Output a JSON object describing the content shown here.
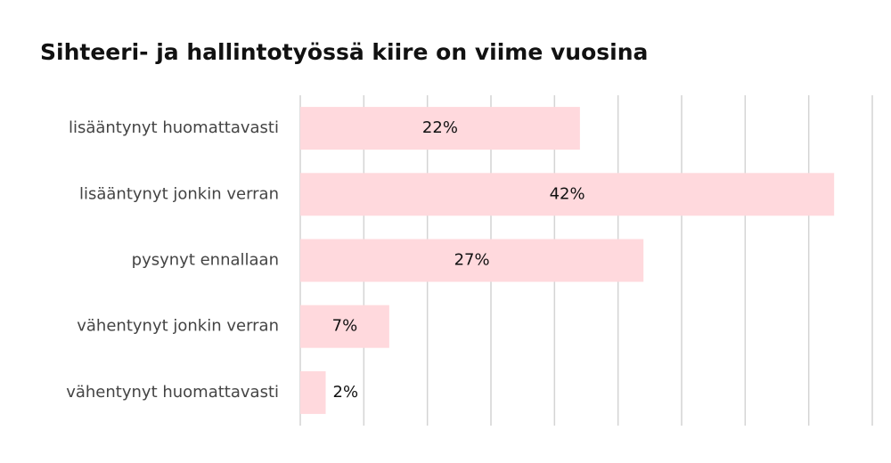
{
  "chart_data": {
    "type": "hbar",
    "title": "Sihteeri- ja hallintotyössä kiire on viime vuosina",
    "categories": [
      "lisääntynyt huomattavasti",
      "lisääntynyt jonkin verran",
      "pysynyt ennallaan",
      "vähentynyt jonkin verran",
      "vähentynyt huomattavasti"
    ],
    "values": [
      22,
      42,
      27,
      7,
      2
    ],
    "value_labels": [
      "22%",
      "42%",
      "27%",
      "7%",
      "2%"
    ],
    "color": "#ffd9dd",
    "xlim": [
      0,
      45
    ],
    "xticks": [
      0,
      5,
      10,
      15,
      20,
      25,
      30,
      35,
      40,
      45
    ],
    "grid": true
  }
}
